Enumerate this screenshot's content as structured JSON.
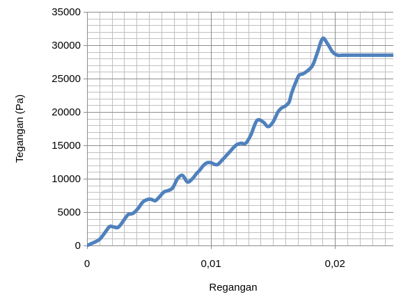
{
  "chart_data": {
    "type": "line",
    "title": "",
    "xlabel": "Regangan",
    "ylabel": "Tegangan (Pa)",
    "xlim": [
      0,
      0.0247
    ],
    "ylim": [
      0,
      35000
    ],
    "x_ticks": [
      0,
      0.01,
      0.02
    ],
    "x_tick_labels": [
      "0",
      "0,01",
      "0,02"
    ],
    "y_ticks": [
      0,
      5000,
      10000,
      15000,
      20000,
      25000,
      30000,
      35000
    ],
    "y_tick_labels": [
      "0",
      "5000",
      "10000",
      "15000",
      "20000",
      "25000",
      "30000",
      "35000"
    ],
    "grid": true,
    "minor_grid": true,
    "legend": "none",
    "series_color": "#4f81bd",
    "grid_color": "#a6a6a6",
    "series": [
      {
        "x": [
          0,
          0.0005,
          0.001,
          0.0014,
          0.0018,
          0.0021,
          0.0025,
          0.0029,
          0.0033,
          0.0037,
          0.0041,
          0.0045,
          0.0049,
          0.0052,
          0.0055,
          0.0058,
          0.0062,
          0.0065,
          0.0069,
          0.0073,
          0.0077,
          0.0081,
          0.0085,
          0.0088,
          0.0091,
          0.0094,
          0.0097,
          0.01,
          0.0105,
          0.011,
          0.0115,
          0.012,
          0.0124,
          0.0128,
          0.0132,
          0.0137,
          0.0142,
          0.0146,
          0.015,
          0.0154,
          0.0157,
          0.016,
          0.0163,
          0.0165,
          0.0168,
          0.0171,
          0.0174,
          0.0178,
          0.0182,
          0.0186,
          0.019,
          0.0194,
          0.0198,
          0.0202,
          0.0206,
          0.021,
          0.0214,
          0.0218,
          0.0222,
          0.0226,
          0.023,
          0.0233,
          0.0236,
          0.0239,
          0.0242,
          0.0245,
          0.0247
        ],
        "y": [
          0,
          400,
          900,
          1800,
          2800,
          2800,
          2700,
          3600,
          4600,
          4800,
          5500,
          6500,
          6900,
          6900,
          6700,
          7200,
          8000,
          8200,
          8600,
          10000,
          10500,
          9500,
          10000,
          10700,
          11300,
          12000,
          12400,
          12400,
          12100,
          13000,
          14000,
          15000,
          15300,
          15300,
          16500,
          18700,
          18500,
          17800,
          18500,
          20000,
          20600,
          20900,
          21500,
          22800,
          24300,
          25500,
          25700,
          26200,
          27000,
          29000,
          31000,
          30200,
          29000,
          28500,
          28500,
          28500,
          28500,
          28500,
          28500,
          28500,
          28500,
          28500,
          28500,
          28500,
          28500,
          28500,
          28500
        ]
      }
    ]
  }
}
